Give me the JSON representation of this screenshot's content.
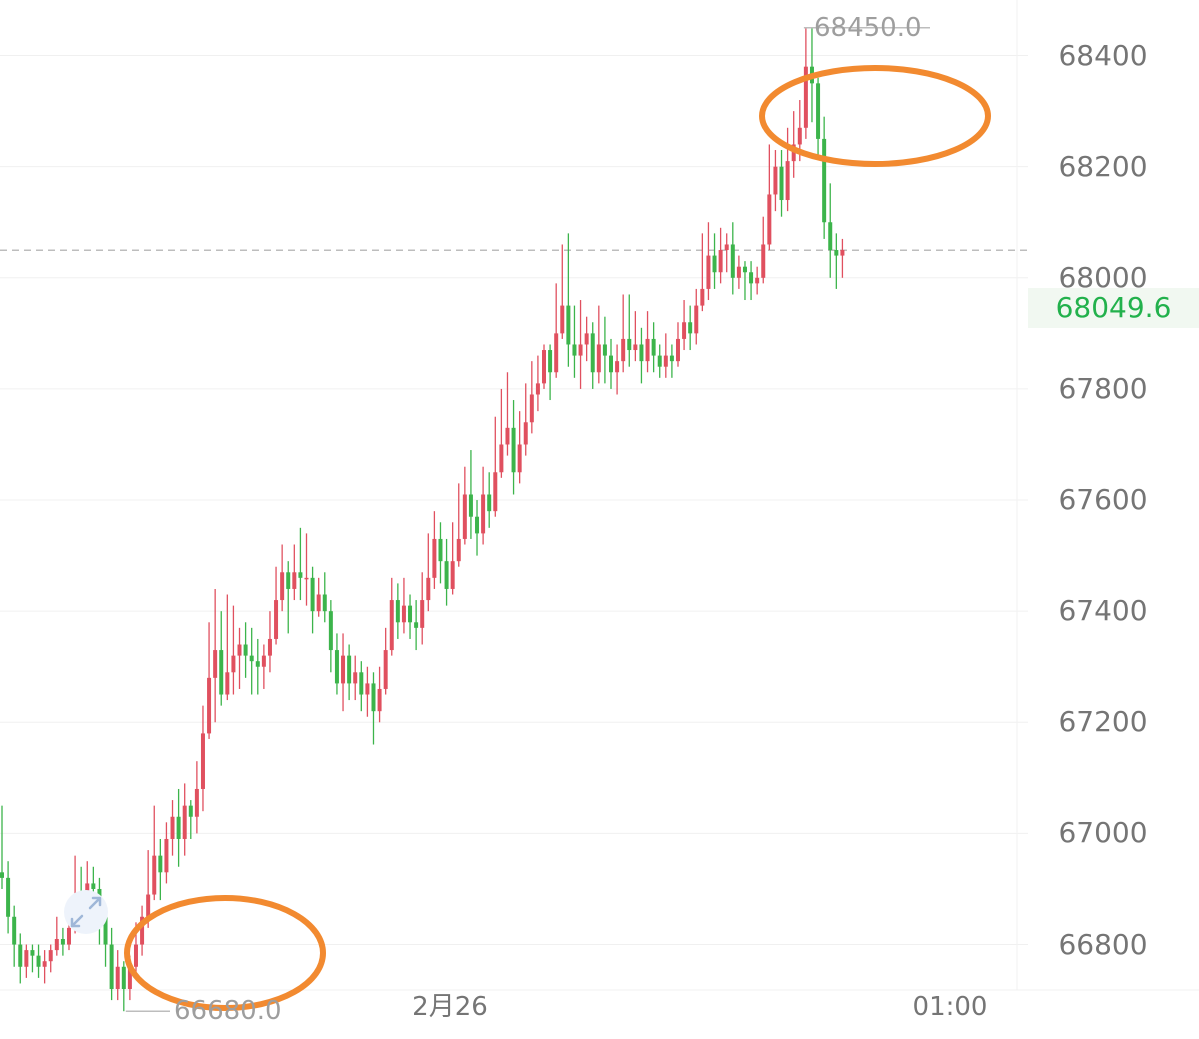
{
  "chart_data": {
    "type": "candlestick",
    "x_tick_labels": [
      "2月26",
      "01:00"
    ],
    "y_tick_labels": [
      "68400",
      "68200",
      "68000",
      "67800",
      "67600",
      "67400",
      "67200",
      "67000",
      "66800"
    ],
    "y_ticks": [
      68400,
      68200,
      68000,
      67800,
      67600,
      67400,
      67200,
      67000,
      66800
    ],
    "ylim": [
      66630,
      68500
    ],
    "grid": true,
    "current_price": 68049.6,
    "current_price_label": "68049.6",
    "high_label": "68450.0",
    "low_label": "66680.0",
    "high_value": 68450.0,
    "low_value": 66680.0,
    "colors": {
      "up": "#e0505f",
      "down": "#3cb44b",
      "grid": "#f0f0f0",
      "dashed": "#bdbdbd",
      "annotation": "#f28a30"
    },
    "candles": [
      [
        66930,
        66920,
        67050,
        66900
      ],
      [
        66920,
        66850,
        66950,
        66820
      ],
      [
        66850,
        66800,
        66870,
        66760
      ],
      [
        66800,
        66760,
        66820,
        66730
      ],
      [
        66760,
        66790,
        66800,
        66740
      ],
      [
        66790,
        66780,
        66800,
        66750
      ],
      [
        66780,
        66760,
        66800,
        66740
      ],
      [
        66760,
        66770,
        66790,
        66730
      ],
      [
        66770,
        66790,
        66800,
        66750
      ],
      [
        66790,
        66810,
        66850,
        66780
      ],
      [
        66810,
        66800,
        66830,
        66780
      ],
      [
        66800,
        66830,
        66860,
        66790
      ],
      [
        66830,
        66880,
        66960,
        66820
      ],
      [
        66880,
        66860,
        66940,
        66840
      ],
      [
        66860,
        66910,
        66950,
        66850
      ],
      [
        66910,
        66900,
        66940,
        66860
      ],
      [
        66900,
        66850,
        66920,
        66800
      ],
      [
        66850,
        66800,
        66870,
        66760
      ],
      [
        66800,
        66720,
        66830,
        66700
      ],
      [
        66720,
        66760,
        66790,
        66700
      ],
      [
        66760,
        66720,
        66770,
        66680
      ],
      [
        66720,
        66760,
        66780,
        66700
      ],
      [
        66760,
        66800,
        66840,
        66750
      ],
      [
        66800,
        66850,
        66870,
        66780
      ],
      [
        66850,
        66890,
        66970,
        66830
      ],
      [
        66890,
        66960,
        67050,
        66880
      ],
      [
        66960,
        66930,
        66990,
        66880
      ],
      [
        66930,
        66990,
        67020,
        66910
      ],
      [
        66990,
        67030,
        67060,
        66960
      ],
      [
        67030,
        66990,
        67080,
        66940
      ],
      [
        66990,
        67050,
        67090,
        66960
      ],
      [
        67050,
        67030,
        67060,
        66990
      ],
      [
        67030,
        67080,
        67130,
        67000
      ],
      [
        67080,
        67180,
        67230,
        67040
      ],
      [
        67180,
        67280,
        67380,
        67170
      ],
      [
        67280,
        67330,
        67440,
        67200
      ],
      [
        67330,
        67250,
        67400,
        67230
      ],
      [
        67250,
        67290,
        67430,
        67240
      ],
      [
        67290,
        67320,
        67410,
        67250
      ],
      [
        67320,
        67340,
        67370,
        67260
      ],
      [
        67340,
        67320,
        67380,
        67280
      ],
      [
        67320,
        67310,
        67370,
        67250
      ],
      [
        67310,
        67300,
        67350,
        67250
      ],
      [
        67300,
        67320,
        67340,
        67260
      ],
      [
        67320,
        67350,
        67400,
        67290
      ],
      [
        67350,
        67420,
        67480,
        67340
      ],
      [
        67420,
        67470,
        67520,
        67400
      ],
      [
        67470,
        67440,
        67490,
        67360
      ],
      [
        67440,
        67470,
        67520,
        67420
      ],
      [
        67470,
        67460,
        67550,
        67420
      ],
      [
        67460,
        67460,
        67540,
        67410
      ],
      [
        67460,
        67400,
        67480,
        67360
      ],
      [
        67400,
        67430,
        67460,
        67390
      ],
      [
        67430,
        67400,
        67470,
        67380
      ],
      [
        67400,
        67330,
        67420,
        67290
      ],
      [
        67330,
        67270,
        67360,
        67250
      ],
      [
        67270,
        67320,
        67360,
        67220
      ],
      [
        67320,
        67270,
        67340,
        67240
      ],
      [
        67270,
        67290,
        67320,
        67240
      ],
      [
        67290,
        67250,
        67310,
        67220
      ],
      [
        67250,
        67270,
        67300,
        67210
      ],
      [
        67270,
        67220,
        67290,
        67160
      ],
      [
        67220,
        67260,
        67300,
        67200
      ],
      [
        67260,
        67330,
        67370,
        67250
      ],
      [
        67330,
        67420,
        67460,
        67320
      ],
      [
        67420,
        67380,
        67450,
        67350
      ],
      [
        67380,
        67410,
        67460,
        67360
      ],
      [
        67410,
        67380,
        67430,
        67350
      ],
      [
        67380,
        67370,
        67420,
        67330
      ],
      [
        67370,
        67420,
        67470,
        67340
      ],
      [
        67420,
        67460,
        67540,
        67400
      ],
      [
        67460,
        67530,
        67580,
        67440
      ],
      [
        67530,
        67490,
        67560,
        67450
      ],
      [
        67490,
        67440,
        67530,
        67410
      ],
      [
        67440,
        67490,
        67560,
        67430
      ],
      [
        67490,
        67530,
        67630,
        67480
      ],
      [
        67530,
        67610,
        67660,
        67520
      ],
      [
        67610,
        67570,
        67690,
        67530
      ],
      [
        67570,
        67540,
        67600,
        67500
      ],
      [
        67540,
        67610,
        67660,
        67520
      ],
      [
        67610,
        67580,
        67650,
        67550
      ],
      [
        67580,
        67650,
        67750,
        67570
      ],
      [
        67650,
        67700,
        67800,
        67640
      ],
      [
        67700,
        67730,
        67830,
        67680
      ],
      [
        67730,
        67650,
        67780,
        67610
      ],
      [
        67650,
        67700,
        67760,
        67630
      ],
      [
        67700,
        67740,
        67810,
        67680
      ],
      [
        67740,
        67790,
        67850,
        67720
      ],
      [
        67790,
        67810,
        67860,
        67760
      ],
      [
        67810,
        67870,
        67880,
        67800
      ],
      [
        67870,
        67830,
        67880,
        67780
      ],
      [
        67830,
        67900,
        67990,
        67820
      ],
      [
        67900,
        67950,
        68060,
        67890
      ],
      [
        67950,
        67880,
        68080,
        67840
      ],
      [
        67880,
        67860,
        67950,
        67820
      ],
      [
        67860,
        67880,
        67960,
        67800
      ],
      [
        67880,
        67900,
        67930,
        67850
      ],
      [
        67900,
        67830,
        67920,
        67800
      ],
      [
        67830,
        67880,
        67950,
        67810
      ],
      [
        67880,
        67860,
        67930,
        67810
      ],
      [
        67860,
        67830,
        67890,
        67800
      ],
      [
        67830,
        67850,
        67880,
        67790
      ],
      [
        67850,
        67890,
        67970,
        67830
      ],
      [
        67890,
        67870,
        67970,
        67840
      ],
      [
        67870,
        67880,
        67940,
        67850
      ],
      [
        67880,
        67850,
        67910,
        67810
      ],
      [
        67850,
        67890,
        67940,
        67830
      ],
      [
        67890,
        67860,
        67920,
        67830
      ],
      [
        67860,
        67840,
        67880,
        67820
      ],
      [
        67840,
        67860,
        67900,
        67820
      ],
      [
        67860,
        67850,
        67880,
        67820
      ],
      [
        67850,
        67890,
        67920,
        67840
      ],
      [
        67890,
        67920,
        67960,
        67870
      ],
      [
        67920,
        67900,
        67950,
        67870
      ],
      [
        67900,
        67950,
        67980,
        67880
      ],
      [
        67950,
        67980,
        68080,
        67940
      ],
      [
        67980,
        68040,
        68100,
        67960
      ],
      [
        68040,
        68010,
        68080,
        67980
      ],
      [
        68010,
        68050,
        68090,
        67990
      ],
      [
        68050,
        68060,
        68080,
        68010
      ],
      [
        68060,
        68000,
        68100,
        67970
      ],
      [
        68000,
        68020,
        68040,
        67980
      ],
      [
        68020,
        68010,
        68030,
        67960
      ],
      [
        68010,
        67990,
        68030,
        67960
      ],
      [
        67990,
        68000,
        68020,
        67970
      ],
      [
        68000,
        68060,
        68110,
        67990
      ],
      [
        68060,
        68150,
        68240,
        68050
      ],
      [
        68150,
        68200,
        68230,
        68120
      ],
      [
        68200,
        68140,
        68230,
        68110
      ],
      [
        68140,
        68210,
        68270,
        68120
      ],
      [
        68210,
        68240,
        68300,
        68180
      ],
      [
        68240,
        68270,
        68320,
        68210
      ],
      [
        68270,
        68380,
        68450,
        68250
      ],
      [
        68380,
        68350,
        68450,
        68280
      ],
      [
        68350,
        68250,
        68360,
        68220
      ],
      [
        68250,
        68100,
        68290,
        68070
      ],
      [
        68100,
        68050,
        68170,
        68000
      ],
      [
        68050,
        68040,
        68080,
        67980
      ],
      [
        68040,
        68050,
        68070,
        68000
      ]
    ]
  }
}
